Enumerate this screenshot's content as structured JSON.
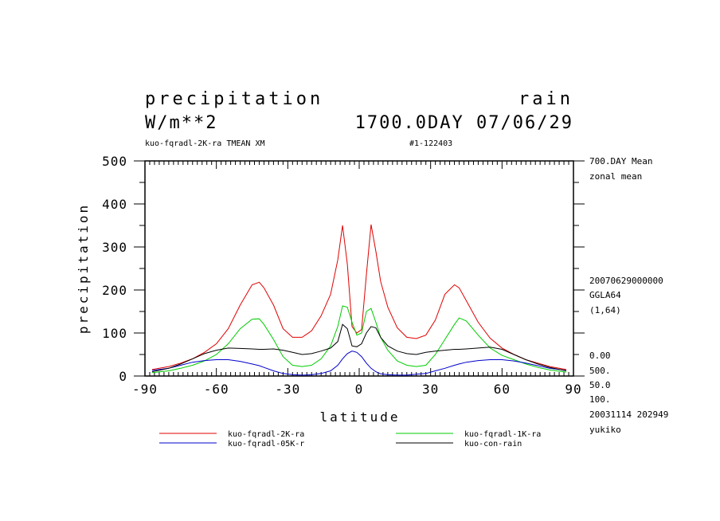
{
  "header": {
    "title_left": "precipitation",
    "title_right": "rain",
    "units": "W/m**2",
    "date_line": "1700.0DAY 07/06/29",
    "experiment": "kuo-fqradl-2K-ra TMEAN XM",
    "run_id": "#1-122403"
  },
  "side_info": {
    "mean_label": "700.DAY Mean",
    "zonal_label": "zonal mean",
    "timestamp": "20070629000000",
    "grid": "GGLA64",
    "range": "(1,64)",
    "v1": "0.00",
    "v2": "500.",
    "v3": "50.0",
    "v4": "100.",
    "created": "20031114 202949",
    "user": "yukiko"
  },
  "chart_data": {
    "type": "line",
    "title": "precipitation",
    "xlabel": "latitude",
    "ylabel": "precipitation",
    "xlim": [
      -90,
      90
    ],
    "ylim": [
      0,
      500
    ],
    "xticks": [
      -90,
      -60,
      -30,
      0,
      30,
      60,
      90
    ],
    "yticks": [
      0,
      100,
      200,
      300,
      400,
      500
    ],
    "xtick_labels": [
      "-90",
      "-60",
      "-30",
      "0",
      "30",
      "60",
      "90"
    ],
    "ytick_labels": [
      "0",
      "100",
      "200",
      "300",
      "400",
      "500"
    ],
    "x": [
      -87,
      -80,
      -75,
      -70,
      -65,
      -60,
      -55,
      -50,
      -45,
      -42,
      -40,
      -36,
      -32,
      -28,
      -24,
      -20,
      -16,
      -12,
      -9,
      -7,
      -5,
      -3,
      -1,
      1,
      3,
      5,
      7,
      9,
      12,
      16,
      20,
      24,
      28,
      32,
      36,
      40,
      42,
      45,
      50,
      55,
      60,
      65,
      70,
      75,
      80,
      87
    ],
    "series": [
      {
        "name": "kuo-fqradl-2K-ra",
        "color": "#e00000",
        "values": [
          15,
          22,
          30,
          40,
          55,
          75,
          110,
          165,
          212,
          218,
          205,
          165,
          110,
          90,
          90,
          105,
          140,
          190,
          270,
          350,
          260,
          115,
          100,
          108,
          235,
          352,
          290,
          220,
          160,
          112,
          90,
          87,
          95,
          130,
          190,
          212,
          205,
          175,
          125,
          88,
          65,
          50,
          38,
          30,
          22,
          15
        ]
      },
      {
        "name": "kuo-fqradl-1K-ra",
        "color": "#00cc00",
        "values": [
          8,
          12,
          18,
          25,
          35,
          50,
          75,
          110,
          132,
          133,
          120,
          85,
          45,
          25,
          22,
          25,
          40,
          70,
          115,
          163,
          160,
          125,
          95,
          100,
          150,
          157,
          125,
          90,
          60,
          35,
          25,
          22,
          25,
          50,
          85,
          120,
          135,
          128,
          95,
          65,
          48,
          38,
          28,
          20,
          14,
          9
        ]
      },
      {
        "name": "kuo-fqradl-05K-r",
        "color": "#0000cc",
        "values": [
          13,
          18,
          25,
          32,
          36,
          38,
          38,
          34,
          28,
          24,
          20,
          12,
          6,
          3,
          2,
          3,
          6,
          12,
          25,
          40,
          52,
          58,
          55,
          45,
          30,
          18,
          10,
          5,
          3,
          2,
          2,
          4,
          6,
          12,
          18,
          25,
          28,
          32,
          36,
          38,
          38,
          35,
          30,
          24,
          18,
          13
        ]
      },
      {
        "name": "kuo-con-rain",
        "color": "#000000",
        "values": [
          10,
          18,
          28,
          40,
          52,
          60,
          65,
          64,
          63,
          62,
          62,
          63,
          60,
          55,
          50,
          52,
          58,
          65,
          80,
          120,
          110,
          70,
          68,
          75,
          100,
          115,
          112,
          90,
          70,
          58,
          52,
          50,
          55,
          58,
          60,
          62,
          62,
          63,
          65,
          67,
          62,
          50,
          38,
          28,
          20,
          12
        ]
      }
    ]
  }
}
